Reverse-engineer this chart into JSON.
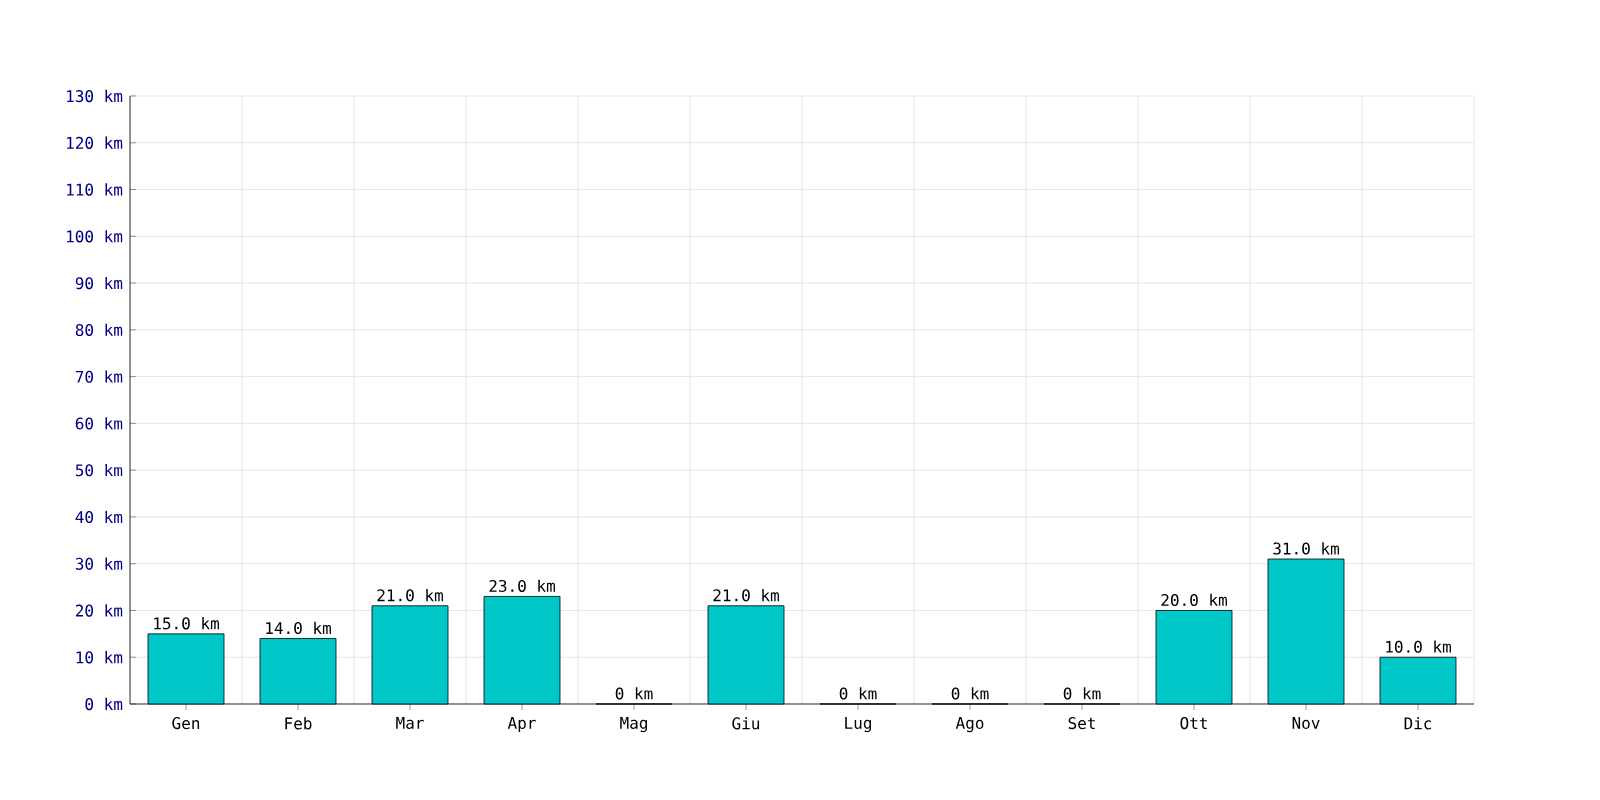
{
  "chart_data": {
    "type": "bar",
    "categories": [
      "Gen",
      "Feb",
      "Mar",
      "Apr",
      "Mag",
      "Giu",
      "Lug",
      "Ago",
      "Set",
      "Ott",
      "Nov",
      "Dic"
    ],
    "values": [
      15.0,
      14.0,
      21.0,
      23.0,
      0,
      21.0,
      0,
      0,
      0,
      20.0,
      31.0,
      10.0
    ],
    "value_labels": [
      "15.0 km",
      "14.0 km",
      "21.0 km",
      "23.0 km",
      "0 km",
      "21.0 km",
      "0 km",
      "0 km",
      "0 km",
      "20.0 km",
      "31.0 km",
      "10.0 km"
    ],
    "color": "#00c8c8",
    "ylim": [
      0,
      130
    ],
    "yticks": [
      {
        "value": 0,
        "label": "0 km"
      },
      {
        "value": 10,
        "label": "10 km"
      },
      {
        "value": 20,
        "label": "20 km"
      },
      {
        "value": 30,
        "label": "30 km"
      },
      {
        "value": 40,
        "label": "40 km"
      },
      {
        "value": 50,
        "label": "50 km"
      },
      {
        "value": 60,
        "label": "60 km"
      },
      {
        "value": 70,
        "label": "70 km"
      },
      {
        "value": 80,
        "label": "80 km"
      },
      {
        "value": 90,
        "label": "90 km"
      },
      {
        "value": 100,
        "label": "100 km"
      },
      {
        "value": 110,
        "label": "110 km"
      },
      {
        "value": 120,
        "label": "120 km"
      },
      {
        "value": 130,
        "label": "130 km"
      }
    ],
    "grid": true
  }
}
